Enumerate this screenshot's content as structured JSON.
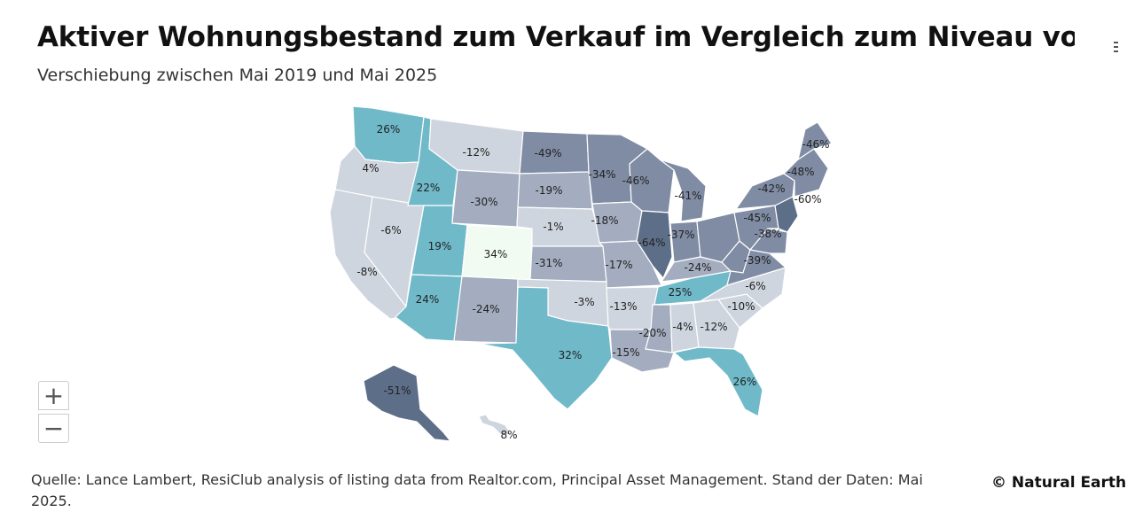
{
  "title": "Aktiver Wohnungsbestand zum Verkauf im Vergleich zum Niveau vor der",
  "subtitle": "Verschiebung zwischen Mai 2019 und Mai 2025",
  "source": "Quelle: Lance Lambert, ResiClub analysis of listing data from Realtor.com, Principal Asset Management. Stand der Daten: Mai 2025.",
  "credit": "© Natural Earth",
  "controls": {
    "zoom_in": "+",
    "zoom_out": "−",
    "menu_icon": "hamburger-menu-icon"
  },
  "colors": {
    "strong_decline": "#5d6e88",
    "decline": "#7f8ca4",
    "mild_decline": "#a3adbf",
    "slight_change": "#cfd5de",
    "gain": "#6fb9c9",
    "strong_gain": "#f2fbf1"
  },
  "states": [
    {
      "id": "WA",
      "label": "26%",
      "value": 26
    },
    {
      "id": "OR",
      "label": "4%",
      "value": 4
    },
    {
      "id": "CA",
      "label": "-8%",
      "value": -8
    },
    {
      "id": "NV",
      "label": "-6%",
      "value": -6
    },
    {
      "id": "ID",
      "label": "22%",
      "value": 22
    },
    {
      "id": "UT",
      "label": "19%",
      "value": 19
    },
    {
      "id": "AZ",
      "label": "24%",
      "value": 24
    },
    {
      "id": "MT",
      "label": "-12%",
      "value": -12
    },
    {
      "id": "WY",
      "label": "-30%",
      "value": -30
    },
    {
      "id": "CO",
      "label": "34%",
      "value": 34
    },
    {
      "id": "NM",
      "label": "-24%",
      "value": -24
    },
    {
      "id": "ND",
      "label": "-49%",
      "value": -49
    },
    {
      "id": "SD",
      "label": "-19%",
      "value": -19
    },
    {
      "id": "NE",
      "label": "-1%",
      "value": -1
    },
    {
      "id": "KS",
      "label": "-31%",
      "value": -31
    },
    {
      "id": "OK",
      "label": "-3%",
      "value": -3
    },
    {
      "id": "TX",
      "label": "32%",
      "value": 32
    },
    {
      "id": "MN",
      "label": "-34%",
      "value": -34
    },
    {
      "id": "IA",
      "label": "-18%",
      "value": -18
    },
    {
      "id": "MO",
      "label": "-17%",
      "value": -17
    },
    {
      "id": "AR",
      "label": "-13%",
      "value": -13
    },
    {
      "id": "LA",
      "label": "-15%",
      "value": -15
    },
    {
      "id": "WI",
      "label": "-46%",
      "value": -46
    },
    {
      "id": "IL",
      "label": "-64%",
      "value": -64
    },
    {
      "id": "MI",
      "label": "-41%",
      "value": -41
    },
    {
      "id": "IN",
      "label": "-37%",
      "value": -37
    },
    {
      "id": "OH",
      "label": "",
      "value": null
    },
    {
      "id": "KY",
      "label": "-24%",
      "value": -24
    },
    {
      "id": "TN",
      "label": "25%",
      "value": 25
    },
    {
      "id": "MS",
      "label": "-20%",
      "value": -20
    },
    {
      "id": "AL",
      "label": "-4%",
      "value": -4
    },
    {
      "id": "GA",
      "label": "-12%",
      "value": -12
    },
    {
      "id": "FL",
      "label": "26%",
      "value": 26
    },
    {
      "id": "SC",
      "label": "-10%",
      "value": -10
    },
    {
      "id": "NC",
      "label": "-6%",
      "value": -6
    },
    {
      "id": "VA",
      "label": "-39%",
      "value": -39
    },
    {
      "id": "WV",
      "label": "",
      "value": null
    },
    {
      "id": "PA",
      "label": "-45%",
      "value": -45
    },
    {
      "id": "NY",
      "label": "-42%",
      "value": -42
    },
    {
      "id": "NJ",
      "label": "-60%",
      "value": -60
    },
    {
      "id": "MD",
      "label": "-38%",
      "value": -38
    },
    {
      "id": "NE-US",
      "label": "-48%",
      "value": -48
    },
    {
      "id": "ME",
      "label": "-46%",
      "value": -46
    },
    {
      "id": "AK",
      "label": "-51%",
      "value": -51
    },
    {
      "id": "HI",
      "label": "8%",
      "value": 8
    }
  ]
}
